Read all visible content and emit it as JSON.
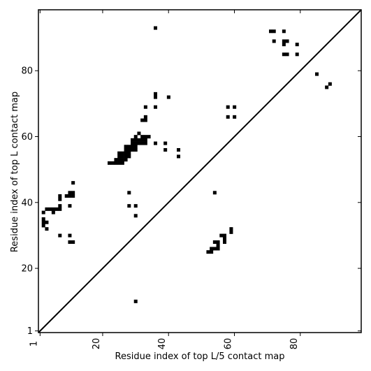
{
  "chart_data": {
    "type": "scatter",
    "title": "",
    "xlabel": "Residue index of top L/5 contact map",
    "ylabel": "Residue index of top L contact map",
    "xlim": [
      0.5,
      98.5
    ],
    "ylim": [
      0.5,
      98.5
    ],
    "x_ticks": [
      1,
      20,
      40,
      60,
      80
    ],
    "y_ticks": [
      1,
      20,
      40,
      60,
      80
    ],
    "x_tick_labels": [
      "1",
      "20",
      "40",
      "60",
      "80"
    ],
    "y_tick_labels": [
      "1",
      "20",
      "40",
      "60",
      "80"
    ],
    "x_tick_rotation": -90,
    "grid": false,
    "marker": "square",
    "marker_color": "#000000",
    "diagonal": {
      "from": [
        0.5,
        0.5
      ],
      "to": [
        98.5,
        98.5
      ],
      "color": "#000000"
    },
    "points_upper_left": [
      [
        36,
        93
      ],
      [
        71,
        92
      ],
      [
        72,
        92
      ],
      [
        75,
        92
      ],
      [
        72,
        89
      ],
      [
        75,
        89
      ],
      [
        76,
        89
      ],
      [
        79,
        88
      ],
      [
        75,
        88
      ],
      [
        75,
        85
      ],
      [
        76,
        85
      ],
      [
        79,
        85
      ],
      [
        85,
        79
      ],
      [
        88,
        75
      ],
      [
        89,
        76
      ],
      [
        36,
        73
      ],
      [
        36,
        72
      ],
      [
        40,
        72
      ],
      [
        33,
        69
      ],
      [
        36,
        69
      ],
      [
        58,
        69
      ],
      [
        60,
        69
      ],
      [
        32,
        65
      ],
      [
        33,
        65
      ],
      [
        33,
        66
      ],
      [
        58,
        66
      ],
      [
        60,
        66
      ],
      [
        31,
        61
      ],
      [
        32,
        60
      ],
      [
        33,
        60
      ],
      [
        34,
        60
      ],
      [
        30,
        60
      ],
      [
        29,
        59
      ],
      [
        30,
        59
      ],
      [
        31,
        59
      ],
      [
        32,
        59
      ],
      [
        33,
        59
      ],
      [
        29,
        58
      ],
      [
        30,
        58
      ],
      [
        31,
        58
      ],
      [
        32,
        58
      ],
      [
        33,
        58
      ],
      [
        36,
        58
      ],
      [
        39,
        58
      ],
      [
        27,
        57
      ],
      [
        28,
        57
      ],
      [
        29,
        57
      ],
      [
        30,
        57
      ],
      [
        27,
        56
      ],
      [
        28,
        56
      ],
      [
        29,
        56
      ],
      [
        30,
        56
      ],
      [
        39,
        56
      ],
      [
        43,
        56
      ],
      [
        25,
        55
      ],
      [
        26,
        55
      ],
      [
        27,
        55
      ],
      [
        28,
        55
      ],
      [
        25,
        54
      ],
      [
        26,
        54
      ],
      [
        27,
        54
      ],
      [
        28,
        54
      ],
      [
        43,
        54
      ],
      [
        24,
        53
      ],
      [
        25,
        53
      ],
      [
        26,
        53
      ],
      [
        27,
        53
      ],
      [
        22,
        52
      ],
      [
        23,
        52
      ],
      [
        24,
        52
      ],
      [
        25,
        52
      ],
      [
        26,
        52
      ],
      [
        11,
        46
      ],
      [
        28,
        43
      ],
      [
        54,
        43
      ],
      [
        7,
        42
      ],
      [
        10,
        42
      ],
      [
        11,
        42
      ],
      [
        7,
        41
      ],
      [
        9,
        42
      ],
      [
        10,
        43
      ],
      [
        11,
        43
      ],
      [
        28,
        39
      ],
      [
        30,
        39
      ],
      [
        10,
        39
      ],
      [
        3,
        38
      ],
      [
        4,
        38
      ],
      [
        5,
        38
      ],
      [
        6,
        38
      ],
      [
        7,
        38
      ],
      [
        7,
        39
      ],
      [
        2,
        37
      ],
      [
        5,
        37
      ],
      [
        30,
        36
      ],
      [
        2,
        35
      ],
      [
        2,
        34
      ],
      [
        3,
        34
      ],
      [
        2,
        33
      ],
      [
        3,
        32
      ],
      [
        7,
        30
      ],
      [
        10,
        30
      ],
      [
        10,
        28
      ],
      [
        11,
        28
      ]
    ],
    "points_lower_right": [
      [
        59,
        32
      ],
      [
        59,
        31
      ],
      [
        56,
        30
      ],
      [
        57,
        30
      ],
      [
        57,
        29
      ],
      [
        57,
        28
      ],
      [
        54,
        28
      ],
      [
        55,
        28
      ],
      [
        55,
        27
      ],
      [
        55,
        26
      ],
      [
        53,
        26
      ],
      [
        54,
        26
      ],
      [
        52,
        25
      ],
      [
        53,
        25
      ],
      [
        30,
        10
      ]
    ]
  }
}
